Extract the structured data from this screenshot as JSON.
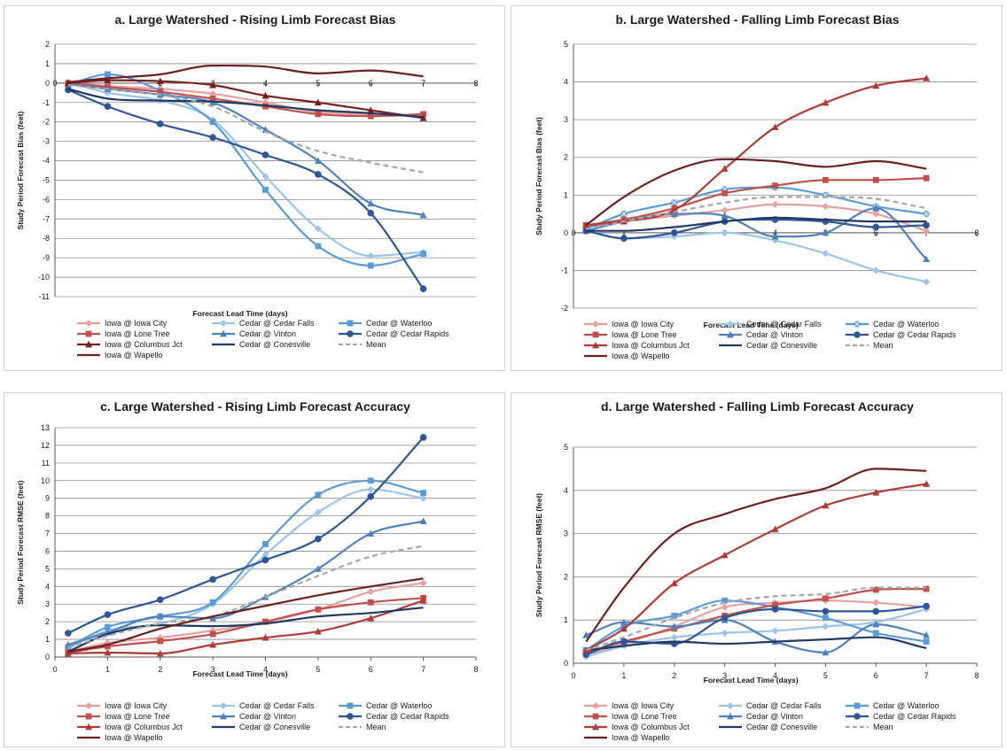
{
  "chart_data": [
    {
      "id": "a",
      "type": "line",
      "title": "a. Large Watershed - Rising Limb Forecast Bias",
      "xlabel": "Forecast Lead Time (days)",
      "ylabel": "Study Period Forecast Bias (feet)",
      "xlim": [
        0,
        8
      ],
      "ylim": [
        -11,
        2
      ],
      "xticks": [
        0,
        1,
        2,
        3,
        4,
        5,
        6,
        7,
        8
      ],
      "yticks": [
        -11,
        -10,
        -9,
        -8,
        -7,
        -6,
        -5,
        -4,
        -3,
        -2,
        -1,
        0,
        1,
        2
      ],
      "x_axis_at_zero": true,
      "grid": "horizontal",
      "x": [
        0.25,
        1,
        2,
        3,
        4,
        5,
        6,
        7
      ],
      "series": [
        {
          "name": "Iowa @ Iowa City",
          "color": "#e8a0a0",
          "marker": "diamond",
          "values": [
            0.0,
            -0.15,
            -0.3,
            -0.55,
            -1.0,
            -1.5,
            -1.6,
            -1.7
          ]
        },
        {
          "name": "Cedar @ Cedar Falls",
          "color": "#9dc3e6",
          "marker": "diamond",
          "values": [
            0.05,
            -0.5,
            -0.9,
            -1.9,
            -4.8,
            -7.5,
            -8.9,
            -8.7
          ]
        },
        {
          "name": "Cedar @ Waterloo",
          "color": "#5b9bd5",
          "marker": "square",
          "values": [
            -0.1,
            0.45,
            -0.4,
            -2.0,
            -5.5,
            -8.4,
            -9.4,
            -8.8
          ]
        },
        {
          "name": "Iowa @ Lone Tree",
          "color": "#c0504d",
          "marker": "square",
          "values": [
            0.0,
            -0.2,
            -0.45,
            -0.8,
            -1.2,
            -1.6,
            -1.7,
            -1.6
          ]
        },
        {
          "name": "Cedar @ Vinton",
          "color": "#4f81bd",
          "marker": "triangle",
          "values": [
            -0.05,
            -0.3,
            -0.6,
            -1.0,
            -2.4,
            -4.0,
            -6.2,
            -6.8
          ]
        },
        {
          "name": "Cedar @ Cedar Rapids",
          "color": "#2e5597",
          "marker": "circle",
          "values": [
            -0.35,
            -1.2,
            -2.1,
            -2.8,
            -3.7,
            -4.7,
            -6.7,
            -10.6
          ]
        },
        {
          "name": "Iowa @ Columbus Jct",
          "color": "#7a1f1f",
          "marker": "triangle",
          "values": [
            0.0,
            0.15,
            0.1,
            -0.1,
            -0.65,
            -1.0,
            -1.4,
            -1.8
          ]
        },
        {
          "name": "Cedar @ Conesville",
          "color": "#1f3864",
          "marker": "none",
          "values": [
            -0.3,
            -0.8,
            -0.9,
            -0.95,
            -1.15,
            -1.4,
            -1.55,
            -1.75
          ]
        },
        {
          "name": "Mean",
          "color": "#a6a6a6",
          "marker": "none",
          "dashed": true,
          "values": [
            -0.1,
            -0.3,
            -0.6,
            -1.2,
            -2.5,
            -3.5,
            -4.1,
            -4.6
          ]
        },
        {
          "name": "Iowa @ Wapello",
          "color": "#6b1f1f",
          "marker": "none",
          "values": [
            0.05,
            0.25,
            0.45,
            0.9,
            0.85,
            0.5,
            0.65,
            0.35
          ]
        }
      ]
    },
    {
      "id": "b",
      "type": "line",
      "title": "b.  Large Watershed - Falling Limb Forecast Bias",
      "xlabel": "Forecast Lead Time (days)",
      "ylabel": "Study Period Forecast Bias (feet)",
      "xlim": [
        0,
        8
      ],
      "ylim": [
        -2,
        5
      ],
      "xticks": [
        0,
        1,
        2,
        3,
        4,
        5,
        6,
        7,
        8
      ],
      "yticks": [
        -2,
        -1,
        0,
        1,
        2,
        3,
        4,
        5
      ],
      "x_axis_at_zero": true,
      "grid": "horizontal",
      "x": [
        0.25,
        1,
        2,
        3,
        4,
        5,
        6,
        7
      ],
      "series": [
        {
          "name": "Iowa @ Iowa City",
          "color": "#e8a0a0",
          "marker": "diamond",
          "values": [
            0.15,
            0.3,
            0.45,
            0.6,
            0.75,
            0.7,
            0.5,
            0.05
          ]
        },
        {
          "name": "Cedar @ Cedar Falls",
          "color": "#9dc3e6",
          "marker": "diamond",
          "values": [
            0.05,
            -0.15,
            -0.1,
            0.0,
            -0.2,
            -0.55,
            -1.0,
            -1.3
          ]
        },
        {
          "name": "Cedar @ Waterloo",
          "color": "#5b9bd5",
          "marker": "x-square",
          "values": [
            0.1,
            0.5,
            0.8,
            1.15,
            1.2,
            1.0,
            0.7,
            0.5
          ]
        },
        {
          "name": "Iowa @ Lone Tree",
          "color": "#c0504d",
          "marker": "square",
          "values": [
            0.2,
            0.35,
            0.65,
            1.05,
            1.25,
            1.4,
            1.4,
            1.45
          ]
        },
        {
          "name": "Cedar @ Vinton",
          "color": "#4f81bd",
          "marker": "triangle",
          "values": [
            0.05,
            0.3,
            0.5,
            0.45,
            -0.1,
            0.0,
            0.65,
            -0.7
          ]
        },
        {
          "name": "Cedar @ Cedar Rapids",
          "color": "#2e5597",
          "marker": "circle",
          "values": [
            0.05,
            -0.15,
            0.0,
            0.3,
            0.35,
            0.3,
            0.15,
            0.2
          ]
        },
        {
          "name": "Iowa @ Columbus Jct",
          "color": "#b03a37",
          "marker": "triangle",
          "values": [
            0.2,
            0.3,
            0.6,
            1.7,
            2.8,
            3.45,
            3.9,
            4.1
          ]
        },
        {
          "name": "Cedar @ Conesville",
          "color": "#1f3864",
          "marker": "none",
          "values": [
            0.05,
            0.05,
            0.15,
            0.3,
            0.4,
            0.35,
            0.3,
            0.3
          ]
        },
        {
          "name": "Mean",
          "color": "#a6a6a6",
          "marker": "none",
          "dashed": true,
          "values": [
            0.1,
            0.3,
            0.55,
            0.8,
            0.95,
            0.95,
            0.9,
            0.65
          ]
        },
        {
          "name": "Iowa @ Wapello",
          "color": "#6b1f1f",
          "marker": "none",
          "values": [
            0.2,
            0.95,
            1.65,
            1.95,
            1.9,
            1.75,
            1.9,
            1.7
          ]
        }
      ]
    },
    {
      "id": "c",
      "type": "line",
      "title": "c. Large Watershed -  Rising Limb Forecast Accuracy",
      "xlabel": "Forecast Lead Time (days)",
      "ylabel": "Study Period Forecast RMSE (feet)",
      "xlim": [
        0,
        8
      ],
      "ylim": [
        0,
        13
      ],
      "xticks": [
        0,
        1,
        2,
        3,
        4,
        5,
        6,
        7,
        8
      ],
      "yticks": [
        0,
        1,
        2,
        3,
        4,
        5,
        6,
        7,
        8,
        9,
        10,
        11,
        12,
        13
      ],
      "x_axis_at_zero": false,
      "grid": "horizontal",
      "x": [
        0.25,
        1,
        2,
        3,
        4,
        5,
        6,
        7
      ],
      "series": [
        {
          "name": "Iowa @ Iowa City",
          "color": "#e8a0a0",
          "marker": "diamond",
          "values": [
            0.3,
            0.8,
            1.1,
            1.5,
            2.0,
            2.7,
            3.7,
            4.2
          ]
        },
        {
          "name": "Cedar @ Cedar Falls",
          "color": "#9dc3e6",
          "marker": "diamond",
          "values": [
            0.5,
            1.5,
            1.9,
            3.0,
            5.8,
            8.2,
            9.5,
            9.0
          ]
        },
        {
          "name": "Cedar @ Waterloo",
          "color": "#5b9bd5",
          "marker": "square",
          "values": [
            0.55,
            1.7,
            2.3,
            3.1,
            6.4,
            9.2,
            10.0,
            9.3
          ]
        },
        {
          "name": "Iowa @ Lone Tree",
          "color": "#c0504d",
          "marker": "square",
          "values": [
            0.25,
            0.6,
            0.9,
            1.3,
            2.0,
            2.7,
            3.1,
            3.35
          ]
        },
        {
          "name": "Cedar @ Vinton",
          "color": "#4f81bd",
          "marker": "triangle",
          "values": [
            0.7,
            1.4,
            2.3,
            2.2,
            3.4,
            5.0,
            7.0,
            7.7
          ]
        },
        {
          "name": "Cedar @ Cedar Rapids",
          "color": "#2e5597",
          "marker": "circle",
          "values": [
            1.35,
            2.4,
            3.25,
            4.4,
            5.5,
            6.7,
            9.1,
            12.45
          ]
        },
        {
          "name": "Iowa @ Columbus Jct",
          "color": "#b03a37",
          "marker": "triangle",
          "values": [
            0.2,
            0.25,
            0.2,
            0.7,
            1.1,
            1.45,
            2.2,
            3.2
          ]
        },
        {
          "name": "Cedar @ Conesville",
          "color": "#1f3864",
          "marker": "none",
          "values": [
            0.3,
            1.3,
            1.8,
            1.75,
            1.9,
            2.3,
            2.5,
            2.8
          ]
        },
        {
          "name": "Mean",
          "color": "#a6a6a6",
          "marker": "none",
          "dashed": true,
          "values": [
            0.55,
            1.2,
            1.9,
            2.3,
            3.4,
            4.6,
            5.7,
            6.3
          ]
        },
        {
          "name": "Iowa @ Wapello",
          "color": "#6b1f1f",
          "marker": "none",
          "values": [
            0.3,
            0.7,
            1.6,
            2.3,
            2.9,
            3.5,
            4.0,
            4.45
          ]
        }
      ]
    },
    {
      "id": "d",
      "type": "line",
      "title": "d. Large Watershed -  Falling Limb Forecast Accuracy",
      "xlabel": "Forecast Lead Time (days)",
      "ylabel": "Study Period Forecast RMSE  (feet)",
      "xlim": [
        0,
        8
      ],
      "ylim": [
        0,
        5
      ],
      "xticks": [
        0,
        1,
        2,
        3,
        4,
        5,
        6,
        7,
        8
      ],
      "yticks": [
        0,
        1,
        2,
        3,
        4,
        5
      ],
      "x_axis_at_zero": false,
      "grid": "horizontal",
      "x": [
        0.25,
        1,
        2,
        3,
        4,
        5,
        6,
        7
      ],
      "series": [
        {
          "name": "Iowa @ Iowa City",
          "color": "#e8a0a0",
          "marker": "diamond",
          "values": [
            0.2,
            0.45,
            0.85,
            1.3,
            1.4,
            1.45,
            1.4,
            1.3
          ]
        },
        {
          "name": "Cedar @ Cedar Falls",
          "color": "#9dc3e6",
          "marker": "diamond",
          "values": [
            0.15,
            0.4,
            0.6,
            0.7,
            0.75,
            0.85,
            0.95,
            1.25
          ]
        },
        {
          "name": "Cedar @ Waterloo",
          "color": "#5b9bd5",
          "marker": "square",
          "values": [
            0.3,
            0.85,
            1.1,
            1.45,
            1.3,
            1.05,
            0.7,
            0.5
          ]
        },
        {
          "name": "Iowa @ Lone Tree",
          "color": "#c0504d",
          "marker": "square",
          "values": [
            0.25,
            0.5,
            0.8,
            1.1,
            1.35,
            1.5,
            1.7,
            1.72
          ]
        },
        {
          "name": "Cedar @ Vinton",
          "color": "#4f81bd",
          "marker": "triangle",
          "values": [
            0.65,
            0.95,
            0.85,
            1.0,
            0.5,
            0.25,
            0.9,
            0.65
          ]
        },
        {
          "name": "Cedar @ Cedar Rapids",
          "color": "#2e5597",
          "marker": "circle",
          "values": [
            0.2,
            0.5,
            0.45,
            1.05,
            1.25,
            1.2,
            1.2,
            1.32
          ]
        },
        {
          "name": "Iowa @ Columbus Jct",
          "color": "#b03a37",
          "marker": "triangle",
          "values": [
            0.3,
            0.8,
            1.85,
            2.5,
            3.1,
            3.65,
            3.95,
            4.15
          ]
        },
        {
          "name": "Cedar @ Conesville",
          "color": "#1f3864",
          "marker": "none",
          "values": [
            0.3,
            0.4,
            0.5,
            0.45,
            0.5,
            0.55,
            0.6,
            0.35
          ]
        },
        {
          "name": "Mean",
          "color": "#a6a6a6",
          "marker": "none",
          "dashed": true,
          "values": [
            0.3,
            0.6,
            1.05,
            1.4,
            1.55,
            1.6,
            1.75,
            1.75
          ]
        },
        {
          "name": "Iowa @ Wapello",
          "color": "#6b1f1f",
          "marker": "none",
          "values": [
            0.5,
            1.75,
            3.0,
            3.45,
            3.8,
            4.05,
            4.5,
            4.45
          ]
        }
      ]
    }
  ]
}
